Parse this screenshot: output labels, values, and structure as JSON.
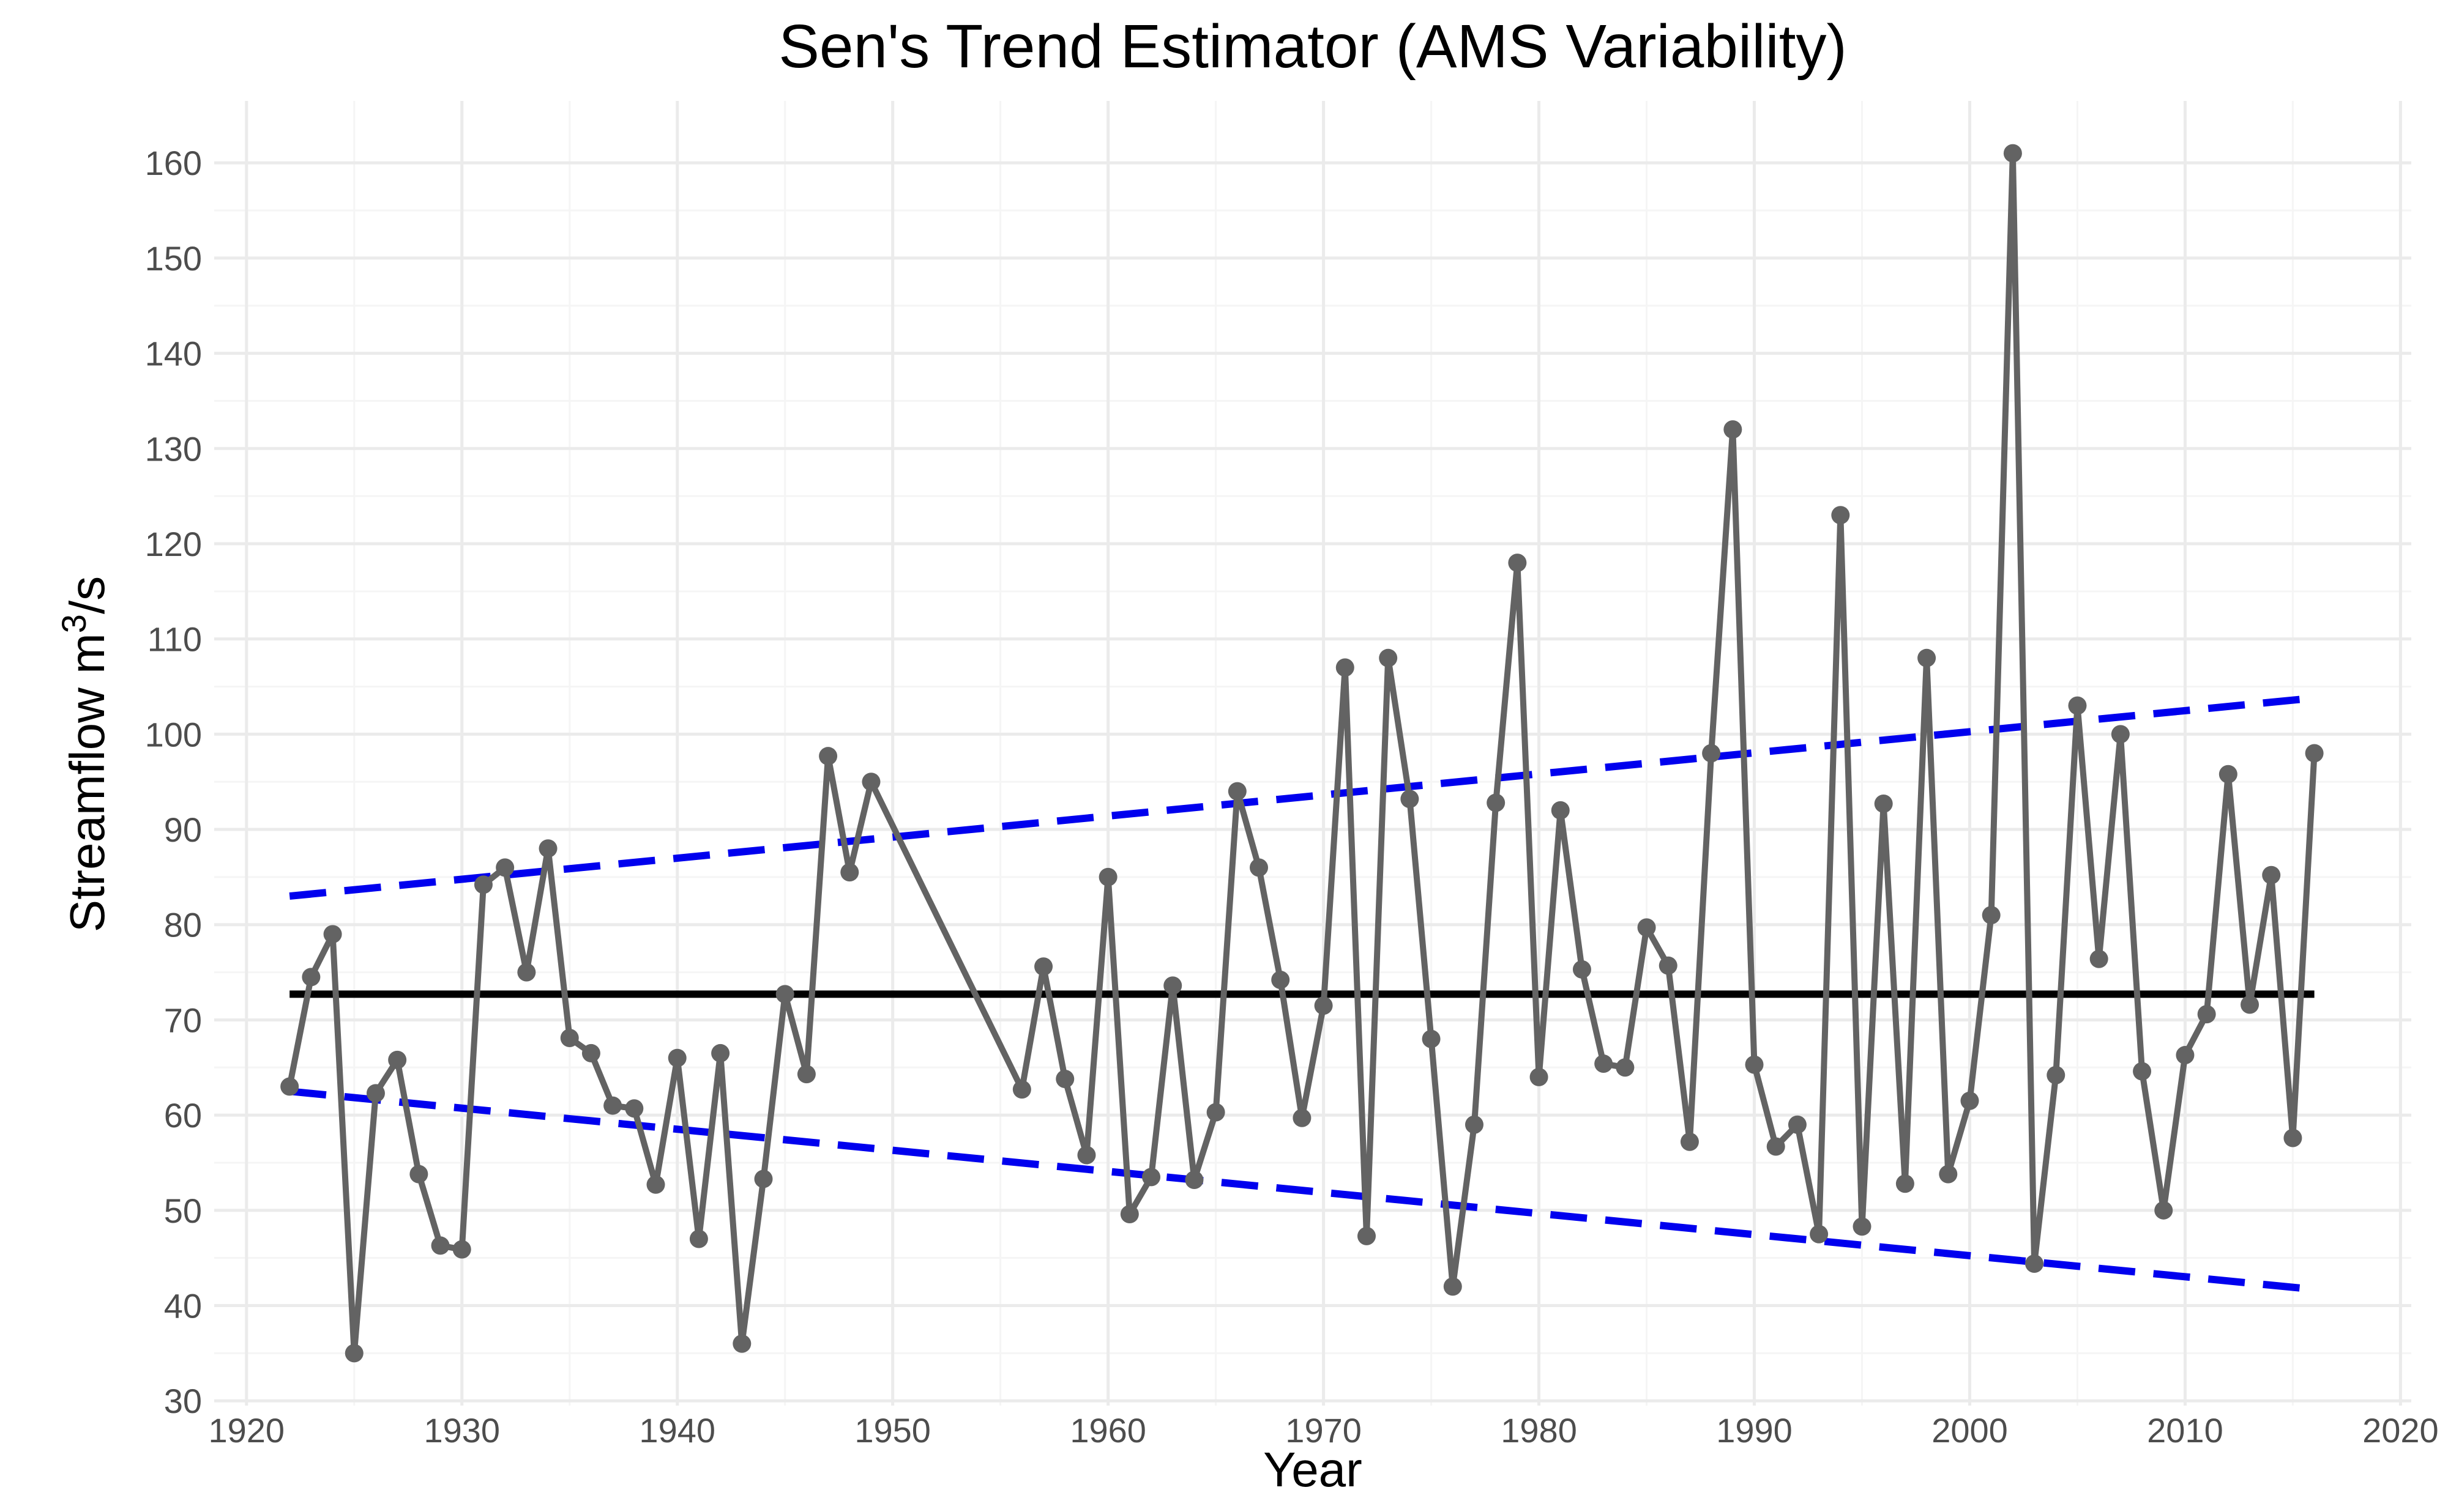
{
  "chart_data": {
    "type": "line",
    "title": "Sen's Trend Estimator (AMS Variability)",
    "xlabel": "Year",
    "ylabel": "Streamflow m³/s",
    "ylabel_parts": {
      "base": "Streamflow m",
      "sup": "3",
      "rest": "/s"
    },
    "xlim": [
      1918.5,
      2020.5
    ],
    "ylim": [
      29.5,
      166.5
    ],
    "xticks": [
      1920,
      1930,
      1940,
      1950,
      1960,
      1970,
      1980,
      1990,
      2000,
      2010,
      2020
    ],
    "yticks": [
      30,
      40,
      50,
      60,
      70,
      80,
      90,
      100,
      110,
      120,
      130,
      140,
      150,
      160
    ],
    "grid": true,
    "legend": "none",
    "colors": {
      "series": "#636363",
      "median": "#000000",
      "bounds": "#0000ee"
    },
    "series": [
      {
        "x": [
          1922,
          1923,
          1924,
          1925,
          1926,
          1927,
          1928,
          1929,
          1930,
          1931,
          1932,
          1933,
          1934,
          1935,
          1936,
          1937,
          1938,
          1939,
          1940,
          1941,
          1942,
          1943,
          1944,
          1945,
          1946,
          1947,
          1948,
          1949,
          1956,
          1957,
          1958,
          1959,
          1960,
          1961,
          1962,
          1963,
          1964,
          1965,
          1966,
          1967,
          1968,
          1969,
          1970,
          1971,
          1972,
          1973,
          1974,
          1975,
          1976,
          1977,
          1978,
          1979,
          1980,
          1981,
          1982,
          1983,
          1984,
          1985,
          1986,
          1987,
          1988,
          1989,
          1990,
          1991,
          1992,
          1993,
          1994,
          1995,
          1996,
          1997,
          1998,
          1999,
          2000,
          2001,
          2002,
          2003,
          2004,
          2005,
          2006,
          2007,
          2008,
          2009,
          2010,
          2011,
          2012,
          2013,
          2014,
          2015,
          2016
        ],
        "y": [
          63,
          74.5,
          79,
          35,
          62.3,
          65.8,
          53.8,
          46.3,
          45.9,
          84.2,
          86,
          75,
          88,
          68.1,
          66.5,
          61,
          60.7,
          52.7,
          66,
          47,
          66.5,
          36,
          53.3,
          72.7,
          64.3,
          97.7,
          85.5,
          95,
          62.7,
          75.6,
          63.8,
          55.8,
          85,
          49.6,
          53.5,
          73.6,
          53.2,
          60.3,
          94,
          86,
          74.2,
          59.7,
          71.5,
          107,
          47.3,
          108,
          93.2,
          68,
          42,
          59,
          92.8,
          118,
          64,
          92,
          75.3,
          65.4,
          65,
          79.7,
          75.7,
          57.2,
          98,
          132,
          65.3,
          56.7,
          59,
          47.5,
          123,
          48.3,
          92.7,
          52.8,
          108,
          53.8,
          61.5,
          81,
          161,
          44.4,
          64.2,
          103,
          76.4,
          100,
          64.6,
          50,
          66.3,
          70.6,
          95.8,
          71.6,
          85.2,
          57.6,
          98
        ]
      }
    ],
    "trend_lines": [
      {
        "kind": "median",
        "style": "solid",
        "x": [
          1922,
          2016
        ],
        "y": [
          72.7,
          72.7
        ]
      },
      {
        "kind": "upper",
        "style": "dashed",
        "x": [
          1922,
          2016
        ],
        "y": [
          83,
          103.8
        ]
      },
      {
        "kind": "lower",
        "style": "dashed",
        "x": [
          1922,
          2016
        ],
        "y": [
          62.5,
          41.7
        ]
      }
    ]
  }
}
